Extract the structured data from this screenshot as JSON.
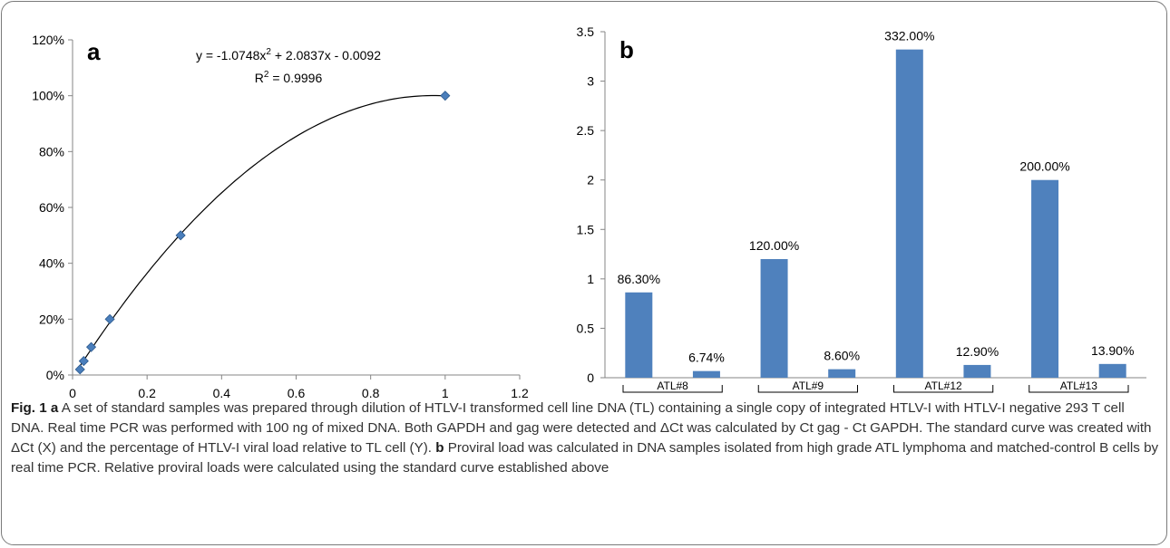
{
  "chart_data": [
    {
      "panel_label": "a",
      "type": "scatter",
      "x": [
        0.02,
        0.03,
        0.05,
        0.1,
        0.29,
        1.0
      ],
      "y": [
        0.02,
        0.05,
        0.1,
        0.2,
        0.5,
        1.0
      ],
      "trendline": {
        "type": "polynomial",
        "a": -1.0748,
        "b": 2.0837,
        "c": -0.0092,
        "x_range": [
          0.02,
          1.0
        ]
      },
      "equation": "y = -1.0748x",
      "equation_sup": "2",
      "equation_rest": " + 2.0837x - 0.0092",
      "r2_label": "R",
      "r2_sup": "2",
      "r2_rest": " = 0.9996",
      "xlim": [
        0,
        1.2
      ],
      "ylim": [
        0,
        1.2
      ],
      "x_ticks": [
        "0",
        "0.2",
        "0.4",
        "0.6",
        "0.8",
        "1",
        "1.2"
      ],
      "y_ticks": [
        "0%",
        "20%",
        "40%",
        "60%",
        "80%",
        "100%",
        "120%"
      ],
      "grid": false,
      "marker_color": "#4a7ebb",
      "line_color": "#000000"
    },
    {
      "panel_label": "b",
      "type": "bar",
      "values": [
        0.863,
        0.0674,
        1.2,
        0.086,
        3.32,
        0.129,
        2.0,
        0.139
      ],
      "data_labels": [
        "86.30%",
        "6.74%",
        "120.00%",
        "8.60%",
        "332.00%",
        "12.90%",
        "200.00%",
        "13.90%"
      ],
      "groups": [
        "ATL#8",
        "ATL#9",
        "ATL#12",
        "ATL#13"
      ],
      "ylim": [
        0,
        3.5
      ],
      "y_ticks": [
        "0",
        "0.5",
        "1",
        "1.5",
        "2",
        "2.5",
        "3",
        "3.5"
      ],
      "grid": false,
      "bar_color": "#4f81bd"
    }
  ],
  "caption": {
    "fig": "Fig. 1",
    "a": "a",
    "text_a": " A set of standard samples was prepared through dilution of HTLV-I transformed cell line DNA (TL) containing a single copy of integrated HTLV-I with HTLV-I negative 293 T cell DNA. Real time PCR was performed with 100 ng of mixed DNA. Both GAPDH and gag were detected and ΔCt was calculated by Ct gag - Ct GAPDH. The standard curve was created with ΔCt (X) and the percentage of HTLV-I viral load relative to TL cell (Y). ",
    "b": "b",
    "text_b": " Proviral load was calculated in DNA samples isolated from high grade ATL lymphoma and matched-control B cells by real time PCR. Relative proviral loads were calculated using the standard curve established above"
  }
}
